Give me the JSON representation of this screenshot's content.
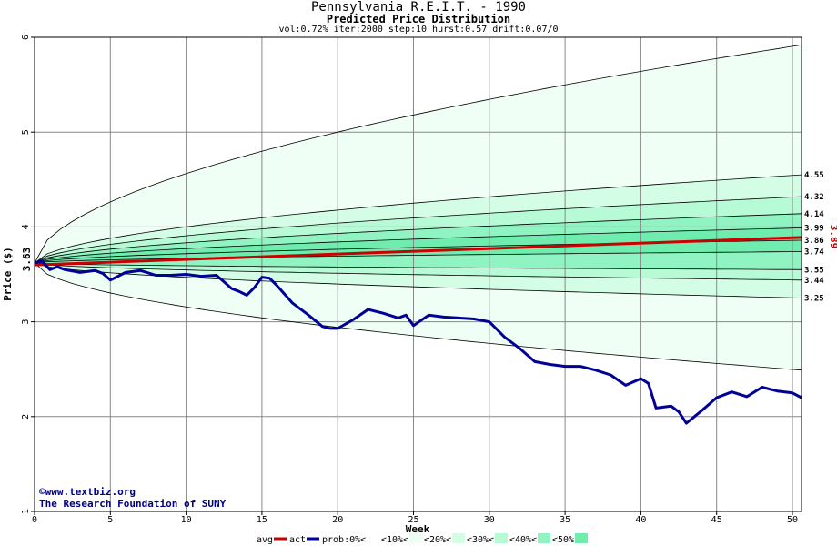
{
  "chart_data": {
    "type": "area",
    "title": "Pennsylvania R.E.I.T. - 1990",
    "subtitle": "Predicted Price Distribution",
    "params": "vol:0.72% iter:2000 step:10 hurst:0.57 drift:0.07/0",
    "xlabel": "Week",
    "ylabel": "Price ($)",
    "xlim": [
      0,
      50.6
    ],
    "ylim": [
      1,
      6
    ],
    "x_ticks": [
      0,
      5,
      10,
      15,
      20,
      25,
      30,
      35,
      40,
      45,
      50
    ],
    "y_ticks": [
      1,
      2,
      3,
      4,
      5,
      6
    ],
    "grid": true,
    "start_value_label": "3.63",
    "avg_end_label": "3.89",
    "band_edges": [
      {
        "end": 5.92,
        "label": ""
      },
      {
        "end": 4.55,
        "label": "4.55"
      },
      {
        "end": 4.32,
        "label": "4.32"
      },
      {
        "end": 4.14,
        "label": "4.14"
      },
      {
        "end": 3.99,
        "label": "3.99"
      },
      {
        "end": 3.86,
        "label": "3.86"
      },
      {
        "end": 3.74,
        "label": "3.74"
      },
      {
        "end": 3.55,
        "label": "3.55"
      },
      {
        "end": 3.44,
        "label": "3.44"
      },
      {
        "end": 3.25,
        "label": "3.25"
      },
      {
        "end": 2.49,
        "label": ""
      }
    ],
    "band_fills": [
      "#effff5",
      "#d4fde6",
      "#b6fad6",
      "#90f4c2",
      "#6eedae"
    ],
    "avg_series": {
      "name": "avg",
      "color": "#cc0000",
      "x": [
        0,
        50.6
      ],
      "y": [
        3.6,
        3.89
      ]
    },
    "act_series": {
      "name": "act",
      "color": "#000099",
      "x": [
        0,
        0.5,
        1,
        1.5,
        2,
        3,
        4,
        4.5,
        5,
        6,
        7,
        8,
        9,
        10,
        11,
        12,
        12.5,
        13,
        13.5,
        14,
        14.5,
        15,
        15.5,
        16,
        17,
        18,
        19,
        19.5,
        20,
        21,
        22,
        23,
        24,
        24.5,
        25,
        26,
        27,
        28,
        29,
        30,
        31,
        32,
        33,
        34,
        35,
        36,
        37,
        38,
        39,
        40,
        40.5,
        41,
        42,
        42.5,
        43,
        44,
        45,
        46,
        47,
        48,
        49,
        50,
        50.6
      ],
      "y": [
        3.62,
        3.64,
        3.55,
        3.58,
        3.55,
        3.52,
        3.54,
        3.51,
        3.44,
        3.52,
        3.54,
        3.49,
        3.49,
        3.5,
        3.48,
        3.49,
        3.42,
        3.35,
        3.32,
        3.28,
        3.36,
        3.47,
        3.46,
        3.38,
        3.2,
        3.08,
        2.95,
        2.93,
        2.93,
        3.02,
        3.13,
        3.09,
        3.04,
        3.07,
        2.96,
        3.07,
        3.05,
        3.04,
        3.03,
        3.0,
        2.84,
        2.72,
        2.58,
        2.55,
        2.53,
        2.53,
        2.49,
        2.44,
        2.33,
        2.4,
        2.35,
        2.09,
        2.11,
        2.05,
        1.93,
        2.06,
        2.2,
        2.26,
        2.21,
        2.31,
        2.27,
        2.25,
        2.2
      ]
    },
    "legend": {
      "placement": "bottom",
      "items": [
        {
          "label": "avg",
          "color": "#cc0000",
          "kind": "line"
        },
        {
          "label": "act",
          "color": "#000099",
          "kind": "line"
        },
        {
          "label": "prob:0%<",
          "color": "#ffffff",
          "kind": "box"
        },
        {
          "label": "<10%<",
          "color": "#effff5",
          "kind": "box"
        },
        {
          "label": "<20%<",
          "color": "#d4fde6",
          "kind": "box"
        },
        {
          "label": "<30%<",
          "color": "#b6fad6",
          "kind": "box"
        },
        {
          "label": "<40%<",
          "color": "#90f4c2",
          "kind": "box"
        },
        {
          "label": "<50%",
          "color": "#6eedae",
          "kind": "box"
        }
      ]
    },
    "credits": [
      "©www.textbiz.org",
      "The Research Foundation of SUNY"
    ]
  }
}
